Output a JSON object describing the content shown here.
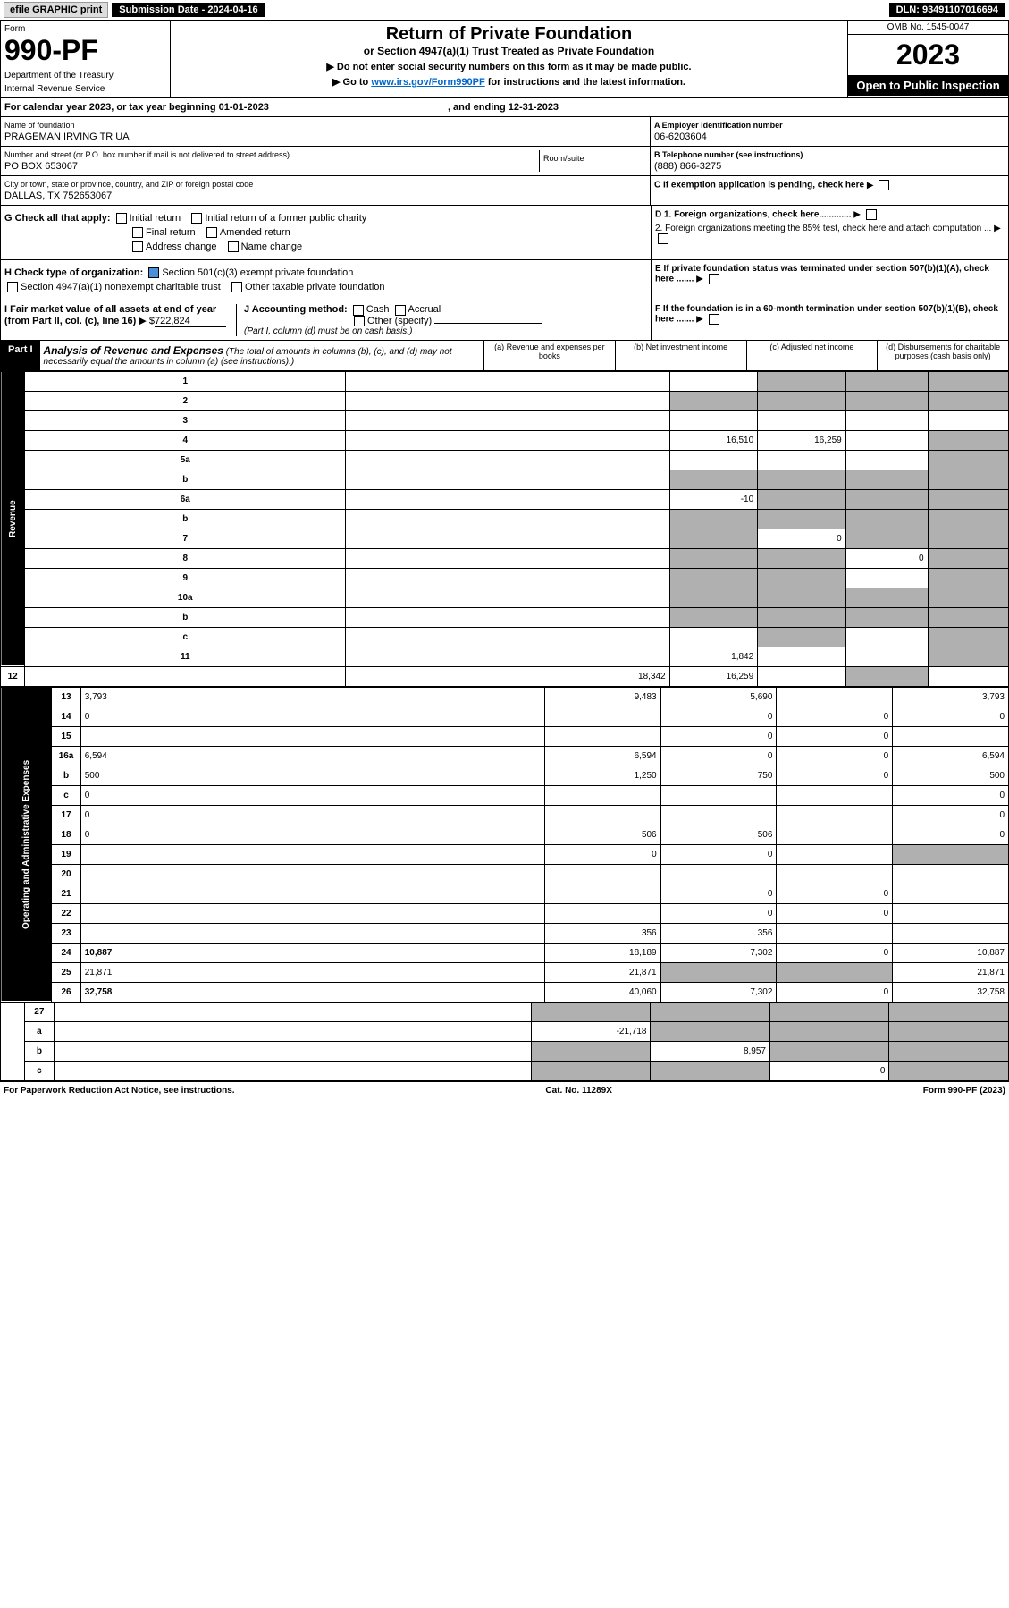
{
  "topBar": {
    "efile": "efile GRAPHIC print",
    "subDate": "Submission Date - 2024-04-16",
    "dln": "DLN: 93491107016694"
  },
  "header": {
    "formLabel": "Form",
    "formNumber": "990-PF",
    "dept": "Department of the Treasury",
    "irs": "Internal Revenue Service",
    "title": "Return of Private Foundation",
    "subtitle": "or Section 4947(a)(1) Trust Treated as Private Foundation",
    "note1": "▶ Do not enter social security numbers on this form as it may be made public.",
    "note2prefix": "▶ Go to ",
    "note2link": "www.irs.gov/Form990PF",
    "note2suffix": " for instructions and the latest information.",
    "omb": "OMB No. 1545-0047",
    "year": "2023",
    "openPublic": "Open to Public Inspection"
  },
  "calYear": {
    "prefix": "For calendar year 2023, or tax year beginning ",
    "begin": "01-01-2023",
    "mid": ", and ending ",
    "end": "12-31-2023"
  },
  "info": {
    "nameLabel": "Name of foundation",
    "name": "PRAGEMAN IRVING TR UA",
    "addrLabel": "Number and street (or P.O. box number if mail is not delivered to street address)",
    "addr": "PO BOX 653067",
    "roomLabel": "Room/suite",
    "cityLabel": "City or town, state or province, country, and ZIP or foreign postal code",
    "city": "DALLAS, TX  752653067",
    "einLabel": "A Employer identification number",
    "ein": "06-6203604",
    "phoneLabel": "B Telephone number (see instructions)",
    "phone": "(888) 866-3275",
    "cLabel": "C If exemption application is pending, check here",
    "d1Label": "D 1. Foreign organizations, check here.............",
    "d2Label": "2. Foreign organizations meeting the 85% test, check here and attach computation ...",
    "eLabel": "E If private foundation status was terminated under section 507(b)(1)(A), check here .......",
    "fLabel": "F If the foundation is in a 60-month termination under section 507(b)(1)(B), check here ......."
  },
  "checkG": {
    "label": "G Check all that apply:",
    "opts": [
      "Initial return",
      "Initial return of a former public charity",
      "Final return",
      "Amended return",
      "Address change",
      "Name change"
    ]
  },
  "checkH": {
    "label": "H Check type of organization:",
    "opt1": "Section 501(c)(3) exempt private foundation",
    "opt2": "Section 4947(a)(1) nonexempt charitable trust",
    "opt3": "Other taxable private foundation"
  },
  "checkI": {
    "label": "I Fair market value of all assets at end of year (from Part II, col. (c), line 16)",
    "prefix": "▶ $",
    "value": "722,824"
  },
  "checkJ": {
    "label": "J Accounting method:",
    "cash": "Cash",
    "accrual": "Accrual",
    "other": "Other (specify)",
    "note": "(Part I, column (d) must be on cash basis.)"
  },
  "partI": {
    "label": "Part I",
    "title": "Analysis of Revenue and Expenses",
    "note": "(The total of amounts in columns (b), (c), and (d) may not necessarily equal the amounts in column (a) (see instructions).)",
    "colA": "(a) Revenue and expenses per books",
    "colB": "(b) Net investment income",
    "colC": "(c) Adjusted net income",
    "colD": "(d) Disbursements for charitable purposes (cash basis only)"
  },
  "sideLabels": {
    "revenue": "Revenue",
    "expenses": "Operating and Administrative Expenses"
  },
  "rows": [
    {
      "n": "1",
      "d": "",
      "a": "",
      "b": "",
      "c": "",
      "bs": true,
      "cs": true,
      "ds": true
    },
    {
      "n": "2",
      "d": "",
      "a": "",
      "b": "",
      "c": "",
      "as": true,
      "bs": true,
      "cs": true,
      "ds": true,
      "bold": false
    },
    {
      "n": "3",
      "d": "",
      "a": "",
      "b": "",
      "c": ""
    },
    {
      "n": "4",
      "d": "",
      "a": "16,510",
      "b": "16,259",
      "c": "",
      "ds": true
    },
    {
      "n": "5a",
      "d": "",
      "a": "",
      "b": "",
      "c": "",
      "ds": true
    },
    {
      "n": "b",
      "d": "",
      "a": "",
      "b": "",
      "c": "",
      "as": true,
      "bs": true,
      "cs": true,
      "ds": true
    },
    {
      "n": "6a",
      "d": "",
      "a": "-10",
      "b": "",
      "c": "",
      "bs": true,
      "cs": true,
      "ds": true
    },
    {
      "n": "b",
      "d": "",
      "a": "",
      "b": "",
      "c": "",
      "as": true,
      "bs": true,
      "cs": true,
      "ds": true
    },
    {
      "n": "7",
      "d": "",
      "a": "",
      "b": "0",
      "c": "",
      "as": true,
      "cs": true,
      "ds": true
    },
    {
      "n": "8",
      "d": "",
      "a": "",
      "b": "",
      "c": "0",
      "as": true,
      "bs": true,
      "ds": true
    },
    {
      "n": "9",
      "d": "",
      "a": "",
      "b": "",
      "c": "",
      "as": true,
      "bs": true,
      "ds": true
    },
    {
      "n": "10a",
      "d": "",
      "a": "",
      "b": "",
      "c": "",
      "as": true,
      "bs": true,
      "cs": true,
      "ds": true
    },
    {
      "n": "b",
      "d": "",
      "a": "",
      "b": "",
      "c": "",
      "as": true,
      "bs": true,
      "cs": true,
      "ds": true
    },
    {
      "n": "c",
      "d": "",
      "a": "",
      "b": "",
      "c": "",
      "bs": true,
      "ds": true
    },
    {
      "n": "11",
      "d": "",
      "a": "1,842",
      "b": "",
      "c": "",
      "ds": true
    },
    {
      "n": "12",
      "d": "",
      "a": "18,342",
      "b": "16,259",
      "c": "",
      "bold": true,
      "ds": true
    }
  ],
  "expRows": [
    {
      "n": "13",
      "d": "3,793",
      "a": "9,483",
      "b": "5,690",
      "c": ""
    },
    {
      "n": "14",
      "d": "0",
      "a": "",
      "b": "0",
      "c": "0"
    },
    {
      "n": "15",
      "d": "",
      "a": "",
      "b": "0",
      "c": "0"
    },
    {
      "n": "16a",
      "d": "6,594",
      "a": "6,594",
      "b": "0",
      "c": "0"
    },
    {
      "n": "b",
      "d": "500",
      "a": "1,250",
      "b": "750",
      "c": "0"
    },
    {
      "n": "c",
      "d": "0",
      "a": "",
      "b": "",
      "c": ""
    },
    {
      "n": "17",
      "d": "0",
      "a": "",
      "b": "",
      "c": ""
    },
    {
      "n": "18",
      "d": "0",
      "a": "506",
      "b": "506",
      "c": ""
    },
    {
      "n": "19",
      "d": "",
      "a": "0",
      "b": "0",
      "c": "",
      "ds": true
    },
    {
      "n": "20",
      "d": "",
      "a": "",
      "b": "",
      "c": ""
    },
    {
      "n": "21",
      "d": "",
      "a": "",
      "b": "0",
      "c": "0"
    },
    {
      "n": "22",
      "d": "",
      "a": "",
      "b": "0",
      "c": "0"
    },
    {
      "n": "23",
      "d": "",
      "a": "356",
      "b": "356",
      "c": ""
    },
    {
      "n": "24",
      "d": "10,887",
      "a": "18,189",
      "b": "7,302",
      "c": "0",
      "bold": true
    },
    {
      "n": "25",
      "d": "21,871",
      "a": "21,871",
      "b": "",
      "c": "",
      "bs": true,
      "cs": true
    },
    {
      "n": "26",
      "d": "32,758",
      "a": "40,060",
      "b": "7,302",
      "c": "0",
      "bold": true
    }
  ],
  "netRows": [
    {
      "n": "27",
      "d": "",
      "a": "",
      "b": "",
      "c": "",
      "as": true,
      "bs": true,
      "cs": true,
      "ds": true
    },
    {
      "n": "a",
      "d": "",
      "a": "-21,718",
      "b": "",
      "c": "",
      "bold": true,
      "bs": true,
      "cs": true,
      "ds": true
    },
    {
      "n": "b",
      "d": "",
      "a": "",
      "b": "8,957",
      "c": "",
      "bold": true,
      "as": true,
      "cs": true,
      "ds": true
    },
    {
      "n": "c",
      "d": "",
      "a": "",
      "b": "",
      "c": "0",
      "bold": true,
      "as": true,
      "bs": true,
      "ds": true
    }
  ],
  "footer": {
    "left": "For Paperwork Reduction Act Notice, see instructions.",
    "center": "Cat. No. 11289X",
    "right": "Form 990-PF (2023)"
  }
}
